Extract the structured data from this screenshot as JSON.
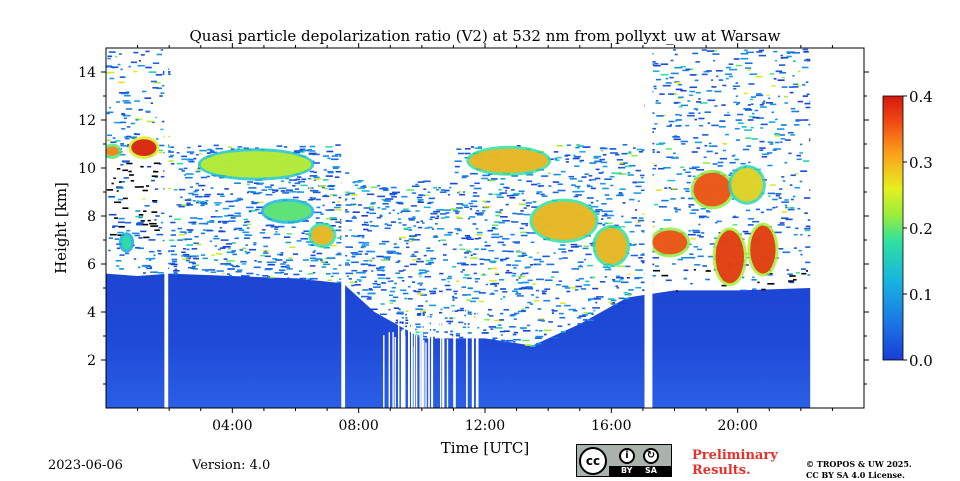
{
  "chart_data": {
    "type": "heatmap",
    "title": "Quasi particle depolarization ratio (V2) at 532 nm from pollyxt_uw at Warsaw",
    "xlabel": "Time [UTC]",
    "ylabel": "Height [km]",
    "x_range_hours": [
      0,
      24
    ],
    "y_range_km": [
      0,
      15
    ],
    "x_ticks": [
      {
        "hour": 4,
        "label": "04:00"
      },
      {
        "hour": 8,
        "label": "08:00"
      },
      {
        "hour": 12,
        "label": "12:00"
      },
      {
        "hour": 16,
        "label": "16:00"
      },
      {
        "hour": 20,
        "label": "20:00"
      }
    ],
    "y_ticks": [
      {
        "value": 2,
        "label": "2"
      },
      {
        "value": 4,
        "label": "4"
      },
      {
        "value": 6,
        "label": "6"
      },
      {
        "value": 8,
        "label": "8"
      },
      {
        "value": 10,
        "label": "10"
      },
      {
        "value": 12,
        "label": "12"
      },
      {
        "value": 14,
        "label": "14"
      }
    ],
    "colorbar": {
      "range": [
        0.0,
        0.4
      ],
      "colormap": "jet",
      "ticks": [
        {
          "value": 0.0,
          "label": "0.0"
        },
        {
          "value": 0.1,
          "label": "0.1"
        },
        {
          "value": 0.2,
          "label": "0.2"
        },
        {
          "value": 0.3,
          "label": "0.3"
        },
        {
          "value": 0.4,
          "label": "0.4"
        }
      ]
    },
    "data_end_hour": 22.3,
    "data_gaps_hours": [
      [
        1.85,
        1.97
      ],
      [
        7.45,
        7.57
      ],
      [
        17.05,
        17.3
      ]
    ],
    "aerosol_layer_top_km": [
      [
        0,
        5.6
      ],
      [
        1.0,
        5.5
      ],
      [
        2.0,
        5.6
      ],
      [
        4.0,
        5.5
      ],
      [
        6.0,
        5.4
      ],
      [
        7.5,
        5.2
      ],
      [
        8.5,
        4.0
      ],
      [
        10.0,
        2.9
      ],
      [
        12.0,
        2.9
      ],
      [
        13.5,
        2.6
      ],
      [
        15.0,
        3.5
      ],
      [
        16.5,
        4.6
      ],
      [
        18.0,
        4.9
      ],
      [
        20.0,
        4.9
      ],
      [
        22.3,
        5.0
      ]
    ],
    "depolarization_features": [
      {
        "t0": 0.0,
        "t1": 0.4,
        "h0": 10.5,
        "h1": 10.9,
        "value": 0.33
      },
      {
        "t0": 0.8,
        "t1": 1.6,
        "h0": 10.5,
        "h1": 11.2,
        "value": 0.42
      },
      {
        "t0": 0.5,
        "t1": 0.8,
        "h0": 6.6,
        "h1": 7.2,
        "value": 0.18
      },
      {
        "t0": 3.0,
        "t1": 6.5,
        "h0": 9.6,
        "h1": 10.7,
        "value": 0.24
      },
      {
        "t0": 5.0,
        "t1": 6.5,
        "h0": 7.8,
        "h1": 8.6,
        "value": 0.2
      },
      {
        "t0": 6.5,
        "t1": 7.2,
        "h0": 6.8,
        "h1": 7.6,
        "value": 0.3
      },
      {
        "t0": 11.5,
        "t1": 14.0,
        "h0": 9.8,
        "h1": 10.8,
        "value": 0.3
      },
      {
        "t0": 13.5,
        "t1": 15.5,
        "h0": 7.0,
        "h1": 8.6,
        "value": 0.3
      },
      {
        "t0": 15.5,
        "t1": 16.5,
        "h0": 6.0,
        "h1": 7.5,
        "value": 0.3
      },
      {
        "t0": 17.3,
        "t1": 18.4,
        "h0": 6.4,
        "h1": 7.4,
        "value": 0.36
      },
      {
        "t0": 18.6,
        "t1": 19.8,
        "h0": 8.4,
        "h1": 9.8,
        "value": 0.36
      },
      {
        "t0": 19.3,
        "t1": 20.2,
        "h0": 5.2,
        "h1": 7.4,
        "value": 0.38
      },
      {
        "t0": 20.4,
        "t1": 21.2,
        "h0": 5.6,
        "h1": 7.6,
        "value": 0.38
      },
      {
        "t0": 19.8,
        "t1": 20.8,
        "h0": 8.6,
        "h1": 10.0,
        "value": 0.28
      }
    ]
  },
  "footer": {
    "date": "2023-06-06",
    "version": "Version: 4.0",
    "preliminary_line1": "Preliminary",
    "preliminary_line2": "Results.",
    "copyright_line1": "© TROPOS & UW 2025.",
    "copyright_line2": "CC BY SA 4.0 License.",
    "badge_cc": "cc",
    "badge_by": "BY",
    "badge_sa": "SA"
  }
}
